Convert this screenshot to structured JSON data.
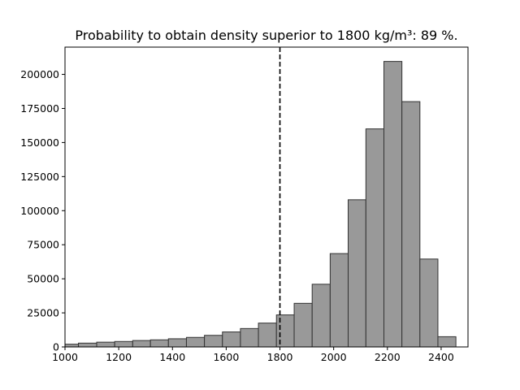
{
  "chart_data": {
    "type": "bar",
    "title": "Probability to obtain density superior to 1800 kg/m³: 89 %.",
    "xlabel": "",
    "ylabel": "",
    "xlim": [
      1000,
      2500
    ],
    "ylim": [
      0,
      220000
    ],
    "bin_edges": [
      1000,
      1050,
      1118,
      1185,
      1252,
      1318,
      1385,
      1452,
      1519,
      1586,
      1653,
      1720,
      1787,
      1853,
      1920,
      1987,
      2054,
      2120,
      2187,
      2254,
      2321,
      2388,
      2455
    ],
    "counts": [
      2000,
      2800,
      3500,
      4000,
      4700,
      5200,
      6000,
      7000,
      8500,
      11000,
      13500,
      17500,
      23500,
      32000,
      46000,
      68500,
      108000,
      160000,
      209500,
      180000,
      64500,
      7500
    ],
    "threshold": 1800,
    "x_ticks": [
      1000,
      1200,
      1400,
      1600,
      1800,
      2000,
      2200,
      2400
    ],
    "y_ticks": [
      0,
      25000,
      50000,
      75000,
      100000,
      125000,
      150000,
      175000,
      200000
    ],
    "bar_color": "#999999",
    "edge_color": "#333333",
    "threshold_color": "#000000"
  }
}
